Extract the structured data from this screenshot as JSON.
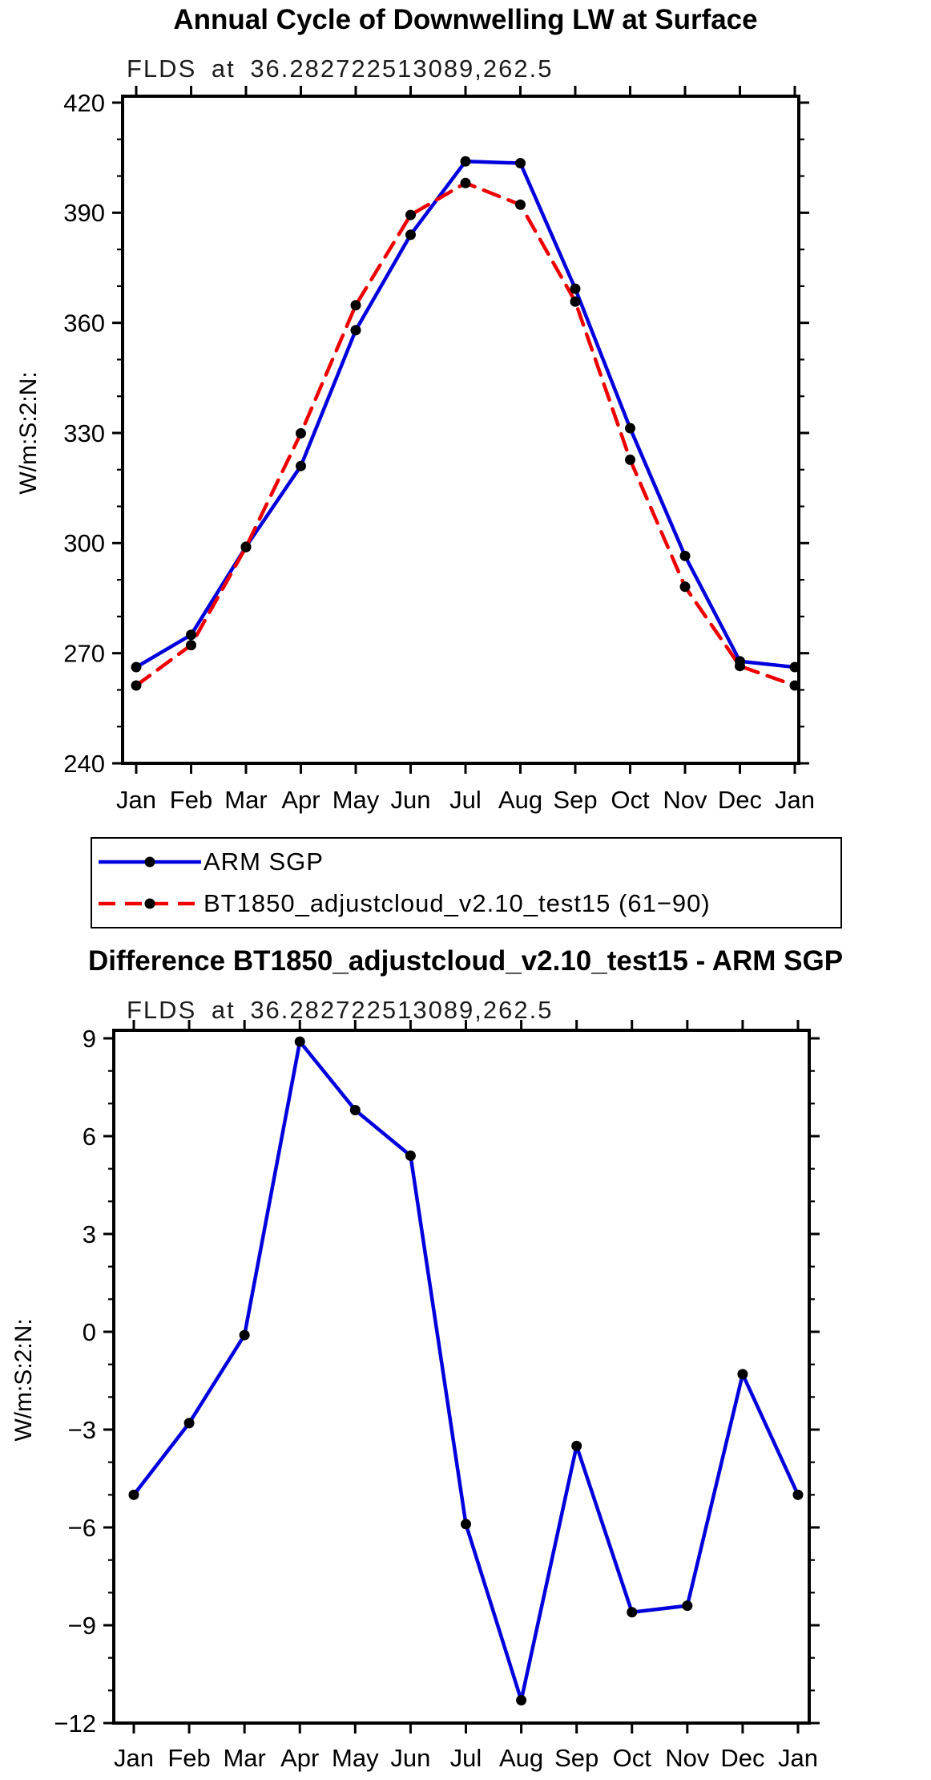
{
  "page": {
    "background": "#ffffff"
  },
  "colors": {
    "series_blue": "#0000dd",
    "series_red": "#ee0000",
    "marker_black": "#000000",
    "axis": "#000000",
    "text": "#000000"
  },
  "chart_data": [
    {
      "type": "line",
      "title": "Annual Cycle of Downwelling LW at Surface",
      "subtitle": "FLDS at 36.282722513089,262.5",
      "ylabel": "W/m:S:2:N:",
      "xlabel": "",
      "categories": [
        "Jan",
        "Feb",
        "Mar",
        "Apr",
        "May",
        "Jun",
        "Jul",
        "Aug",
        "Sep",
        "Oct",
        "Nov",
        "Dec",
        "Jan"
      ],
      "ylim": [
        240,
        420
      ],
      "ytick_step": 30,
      "yminor_step": 10,
      "grid": false,
      "legend_position": "below-left",
      "series": [
        {
          "name": "ARM SGP",
          "color": "#0000dd",
          "line_style": "solid",
          "marker": "dot",
          "marker_color": "#000000",
          "values": [
            266.2,
            275.0,
            299.0,
            321.0,
            358.0,
            384.0,
            404.0,
            403.5,
            369.3,
            331.3,
            296.5,
            267.8,
            266.2
          ]
        },
        {
          "name": "BT1850_adjustcloud_v2.10_test15 (61−90)",
          "color": "#ee0000",
          "line_style": "dashed",
          "marker": "dot",
          "marker_color": "#000000",
          "values": [
            261.2,
            272.2,
            298.9,
            329.9,
            364.8,
            389.4,
            398.1,
            392.2,
            365.8,
            322.7,
            288.1,
            266.5,
            261.2
          ]
        }
      ]
    },
    {
      "type": "line",
      "title": "Difference BT1850_adjustcloud_v2.10_test15 - ARM SGP",
      "subtitle": "FLDS at 36.282722513089,262.5",
      "ylabel": "W/m:S:2:N:",
      "xlabel": "",
      "categories": [
        "Jan",
        "Feb",
        "Mar",
        "Apr",
        "May",
        "Jun",
        "Jul",
        "Aug",
        "Sep",
        "Oct",
        "Nov",
        "Dec",
        "Jan"
      ],
      "ylim": [
        -12,
        9
      ],
      "ytick_step": 3,
      "yminor_step": 1,
      "grid": false,
      "legend_position": "none",
      "series": [
        {
          "name": "BT1850_adjustcloud_v2.10_test15 - ARM SGP",
          "color": "#0000dd",
          "line_style": "solid",
          "marker": "dot",
          "marker_color": "#000000",
          "values": [
            -5.0,
            -2.8,
            -0.1,
            8.9,
            6.8,
            5.4,
            -5.9,
            -11.3,
            -3.5,
            -8.6,
            -8.4,
            -1.3,
            -5.0
          ]
        }
      ]
    }
  ]
}
